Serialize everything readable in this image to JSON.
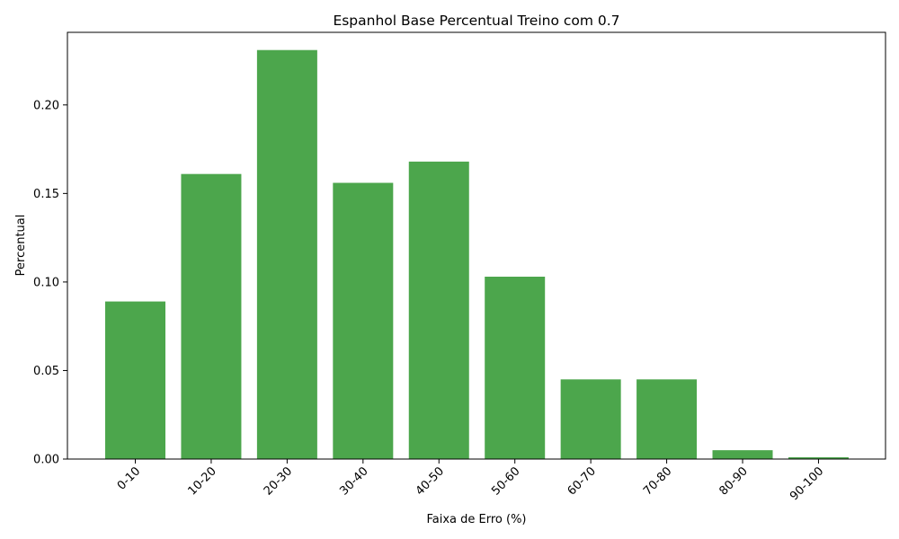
{
  "chart_data": {
    "type": "bar",
    "title": "Espanhol Base Percentual Treino com 0.7",
    "xlabel": "Faixa de Erro (%)",
    "ylabel": "Percentual",
    "categories": [
      "0-10",
      "10-20",
      "20-30",
      "30-40",
      "40-50",
      "50-60",
      "60-70",
      "70-80",
      "80-90",
      "90-100"
    ],
    "values": [
      0.089,
      0.161,
      0.231,
      0.156,
      0.168,
      0.103,
      0.045,
      0.045,
      0.005,
      0.001
    ],
    "ylim": [
      0,
      0.241
    ],
    "yticks": [
      "0.00",
      "0.05",
      "0.10",
      "0.15",
      "0.20"
    ],
    "bar_color": "#4ca64c",
    "grid": false,
    "legend": "none"
  }
}
